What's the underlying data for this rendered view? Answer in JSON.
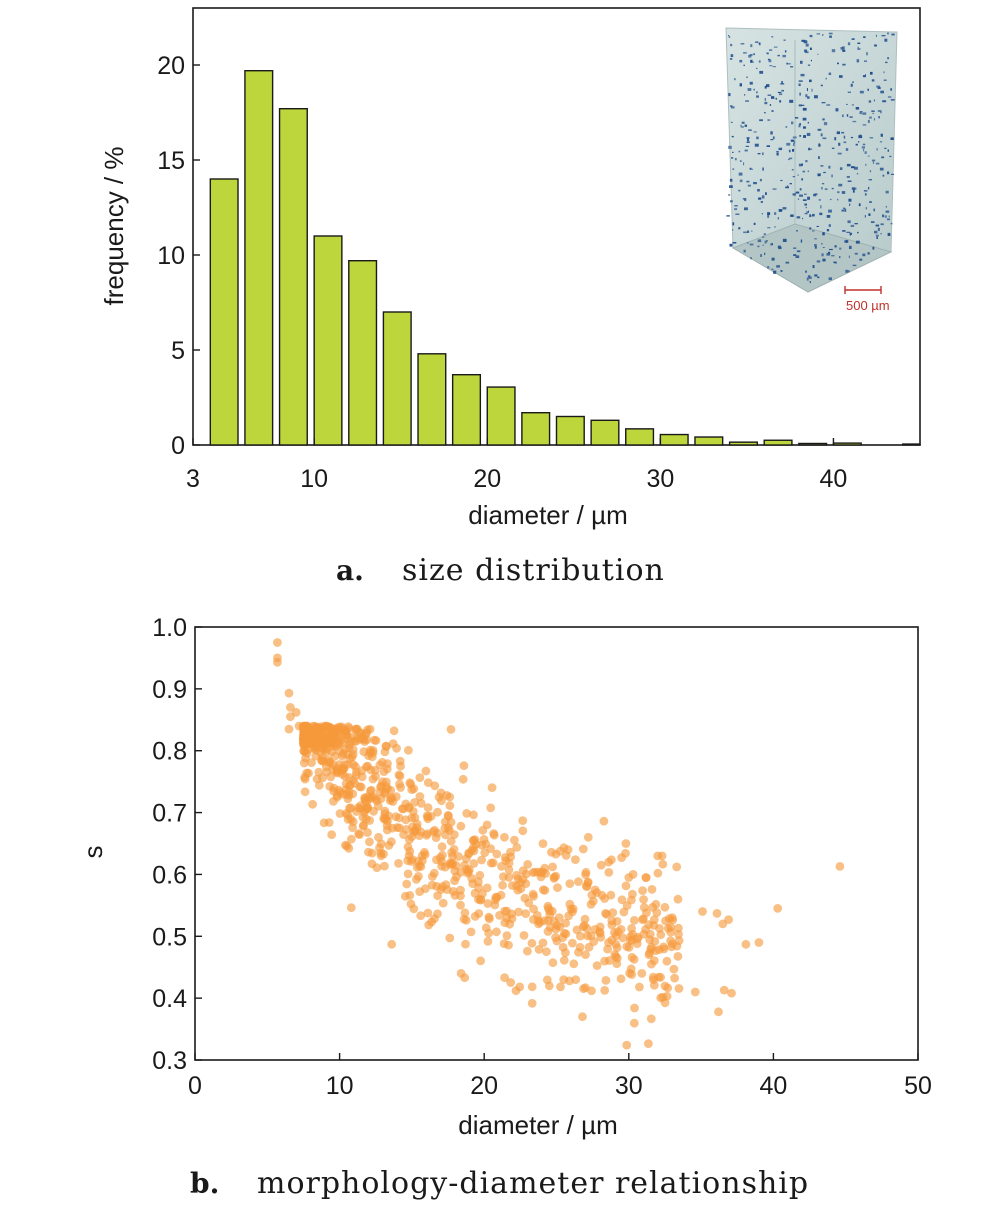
{
  "chart_data": [
    {
      "type": "bar",
      "panel_letter": "a.",
      "caption": "size distribution",
      "xlabel": "diameter / µm",
      "ylabel": "frequency / %",
      "xlim": [
        3,
        45
      ],
      "ylim": [
        0,
        23
      ],
      "xticks": [
        3,
        10,
        20,
        30,
        40
      ],
      "yticks": [
        0,
        5,
        10,
        15,
        20
      ],
      "bar_color": "#bcd63b",
      "bar_edge_color": "#1a1a1a",
      "bins": [
        {
          "x0": 4.0,
          "x1": 5.6,
          "value": 14.0
        },
        {
          "x0": 6.0,
          "x1": 7.6,
          "value": 19.7
        },
        {
          "x0": 8.0,
          "x1": 9.6,
          "value": 17.7
        },
        {
          "x0": 10.0,
          "x1": 11.6,
          "value": 11.0
        },
        {
          "x0": 12.0,
          "x1": 13.6,
          "value": 9.7
        },
        {
          "x0": 14.0,
          "x1": 15.6,
          "value": 7.0
        },
        {
          "x0": 16.0,
          "x1": 17.6,
          "value": 4.8
        },
        {
          "x0": 18.0,
          "x1": 19.6,
          "value": 3.7
        },
        {
          "x0": 20.0,
          "x1": 21.6,
          "value": 3.05
        },
        {
          "x0": 22.0,
          "x1": 23.6,
          "value": 1.7
        },
        {
          "x0": 24.0,
          "x1": 25.6,
          "value": 1.5
        },
        {
          "x0": 26.0,
          "x1": 27.6,
          "value": 1.3
        },
        {
          "x0": 28.0,
          "x1": 29.6,
          "value": 0.85
        },
        {
          "x0": 30.0,
          "x1": 31.6,
          "value": 0.55
        },
        {
          "x0": 32.0,
          "x1": 33.6,
          "value": 0.42
        },
        {
          "x0": 34.0,
          "x1": 35.6,
          "value": 0.15
        },
        {
          "x0": 36.0,
          "x1": 37.6,
          "value": 0.25
        },
        {
          "x0": 38.0,
          "x1": 39.6,
          "value": 0.08
        },
        {
          "x0": 40.0,
          "x1": 41.6,
          "value": 0.1
        },
        {
          "x0": 44.0,
          "x1": 45.0,
          "value": 0.05
        }
      ],
      "inset": {
        "description_icon": "micro-ct-volume-render",
        "scale_bar_label": "500 µm",
        "scale_bar_color": "#c0312b",
        "particle_color": "#1f4e8c",
        "volume_color": "#c8d8d8"
      }
    },
    {
      "type": "scatter",
      "panel_letter": "b.",
      "caption": "morphology-diameter relationship",
      "xlabel": "diameter / µm",
      "ylabel": "s",
      "xlim": [
        0,
        50
      ],
      "ylim": [
        0.3,
        1.0
      ],
      "xticks": [
        0,
        10,
        20,
        30,
        40,
        50
      ],
      "yticks": [
        0.3,
        0.4,
        0.5,
        0.6,
        0.7,
        0.8,
        0.9,
        1.0
      ],
      "point_color": "#f59a3c",
      "point_opacity": 0.62,
      "points_explicit": [
        [
          5.7,
          0.975
        ],
        [
          5.7,
          0.95
        ],
        [
          5.7,
          0.943
        ],
        [
          6.5,
          0.893
        ],
        [
          6.6,
          0.87
        ],
        [
          6.6,
          0.855
        ],
        [
          7.0,
          0.862
        ],
        [
          6.5,
          0.835
        ],
        [
          7.2,
          0.84
        ],
        [
          7.5,
          0.82
        ],
        [
          8.0,
          0.82
        ],
        [
          8.3,
          0.815
        ],
        [
          9.1,
          0.84
        ],
        [
          44.6,
          0.613
        ],
        [
          40.3,
          0.545
        ],
        [
          39.0,
          0.49
        ],
        [
          38.1,
          0.487
        ],
        [
          37.1,
          0.408
        ],
        [
          36.6,
          0.413
        ],
        [
          36.2,
          0.378
        ],
        [
          34.6,
          0.41
        ],
        [
          36.1,
          0.537
        ],
        [
          35.1,
          0.54
        ],
        [
          36.9,
          0.527
        ],
        [
          36.5,
          0.52
        ],
        [
          33.4,
          0.56
        ],
        [
          33.0,
          0.53
        ],
        [
          32.3,
          0.63
        ],
        [
          32.0,
          0.63
        ],
        [
          26.8,
          0.37
        ],
        [
          25.5,
          0.43
        ],
        [
          24.5,
          0.42
        ],
        [
          22.2,
          0.412
        ],
        [
          18.4,
          0.44
        ],
        [
          13.6,
          0.487
        ],
        [
          30.3,
          0.6
        ],
        [
          30.0,
          0.595
        ],
        [
          28.6,
          0.62
        ],
        [
          29.8,
          0.65
        ],
        [
          31.2,
          0.595
        ],
        [
          31.4,
          0.47
        ],
        [
          31.7,
          0.43
        ],
        [
          30.9,
          0.44
        ],
        [
          27.2,
          0.66
        ],
        [
          25.8,
          0.64
        ],
        [
          21.4,
          0.66
        ],
        [
          20.2,
          0.68
        ],
        [
          16.1,
          0.69
        ],
        [
          17.3,
          0.685
        ]
      ],
      "points_bulk": {
        "count": 950,
        "x_range": [
          7.5,
          33.5
        ],
        "trend": "s decreases with diameter from about 0.78 at 8 µm to about 0.55 at 30 µm",
        "spread": 0.06
      }
    }
  ]
}
